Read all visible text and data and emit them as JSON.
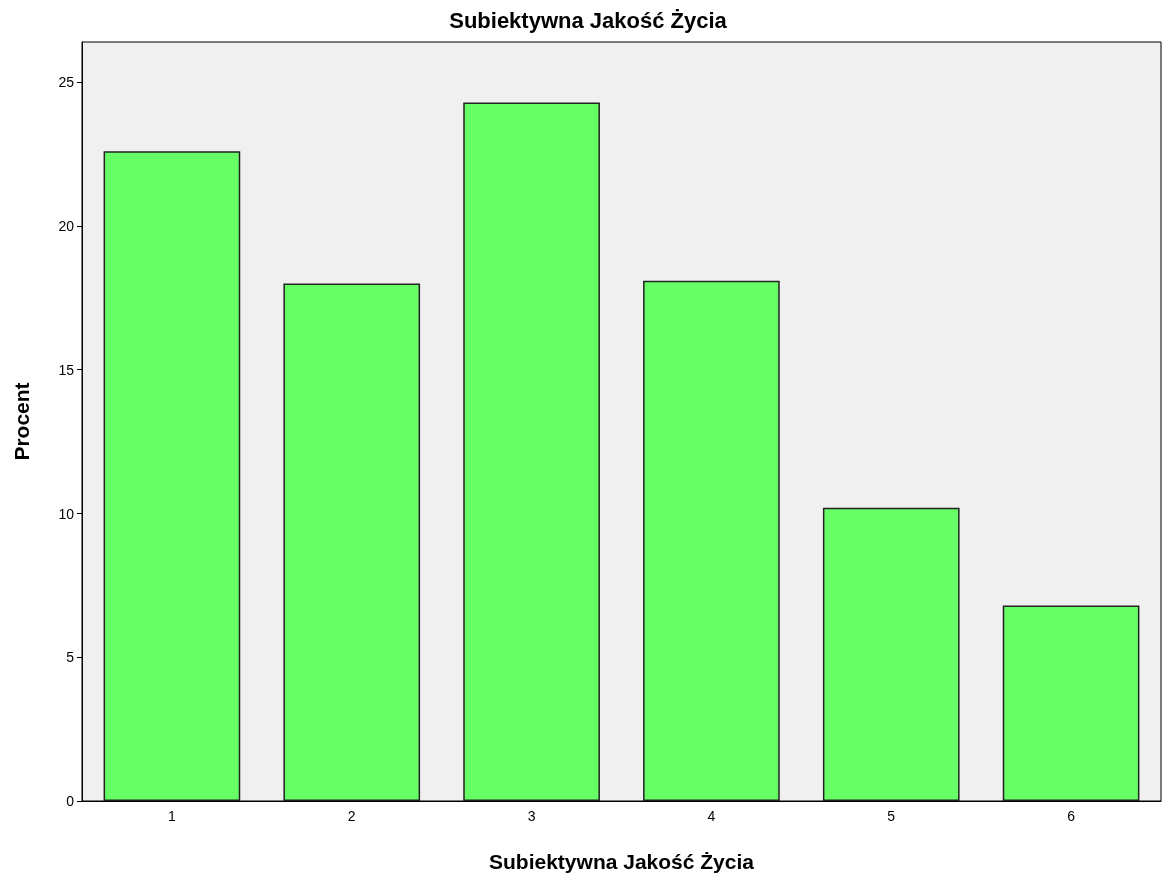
{
  "chart_data": {
    "type": "bar",
    "title": "Subiektywna Jakość Życia",
    "xlabel": "Subiektywna Jakość Życia",
    "ylabel": "Procent",
    "categories": [
      "1",
      "2",
      "3",
      "4",
      "5",
      "6"
    ],
    "values": [
      22.6,
      18.0,
      24.3,
      18.1,
      10.2,
      6.8
    ],
    "color": "#66ff66",
    "ylim": [
      0,
      26.4
    ],
    "yticks": [
      0,
      5,
      10,
      15,
      20,
      25
    ],
    "grid": false
  }
}
